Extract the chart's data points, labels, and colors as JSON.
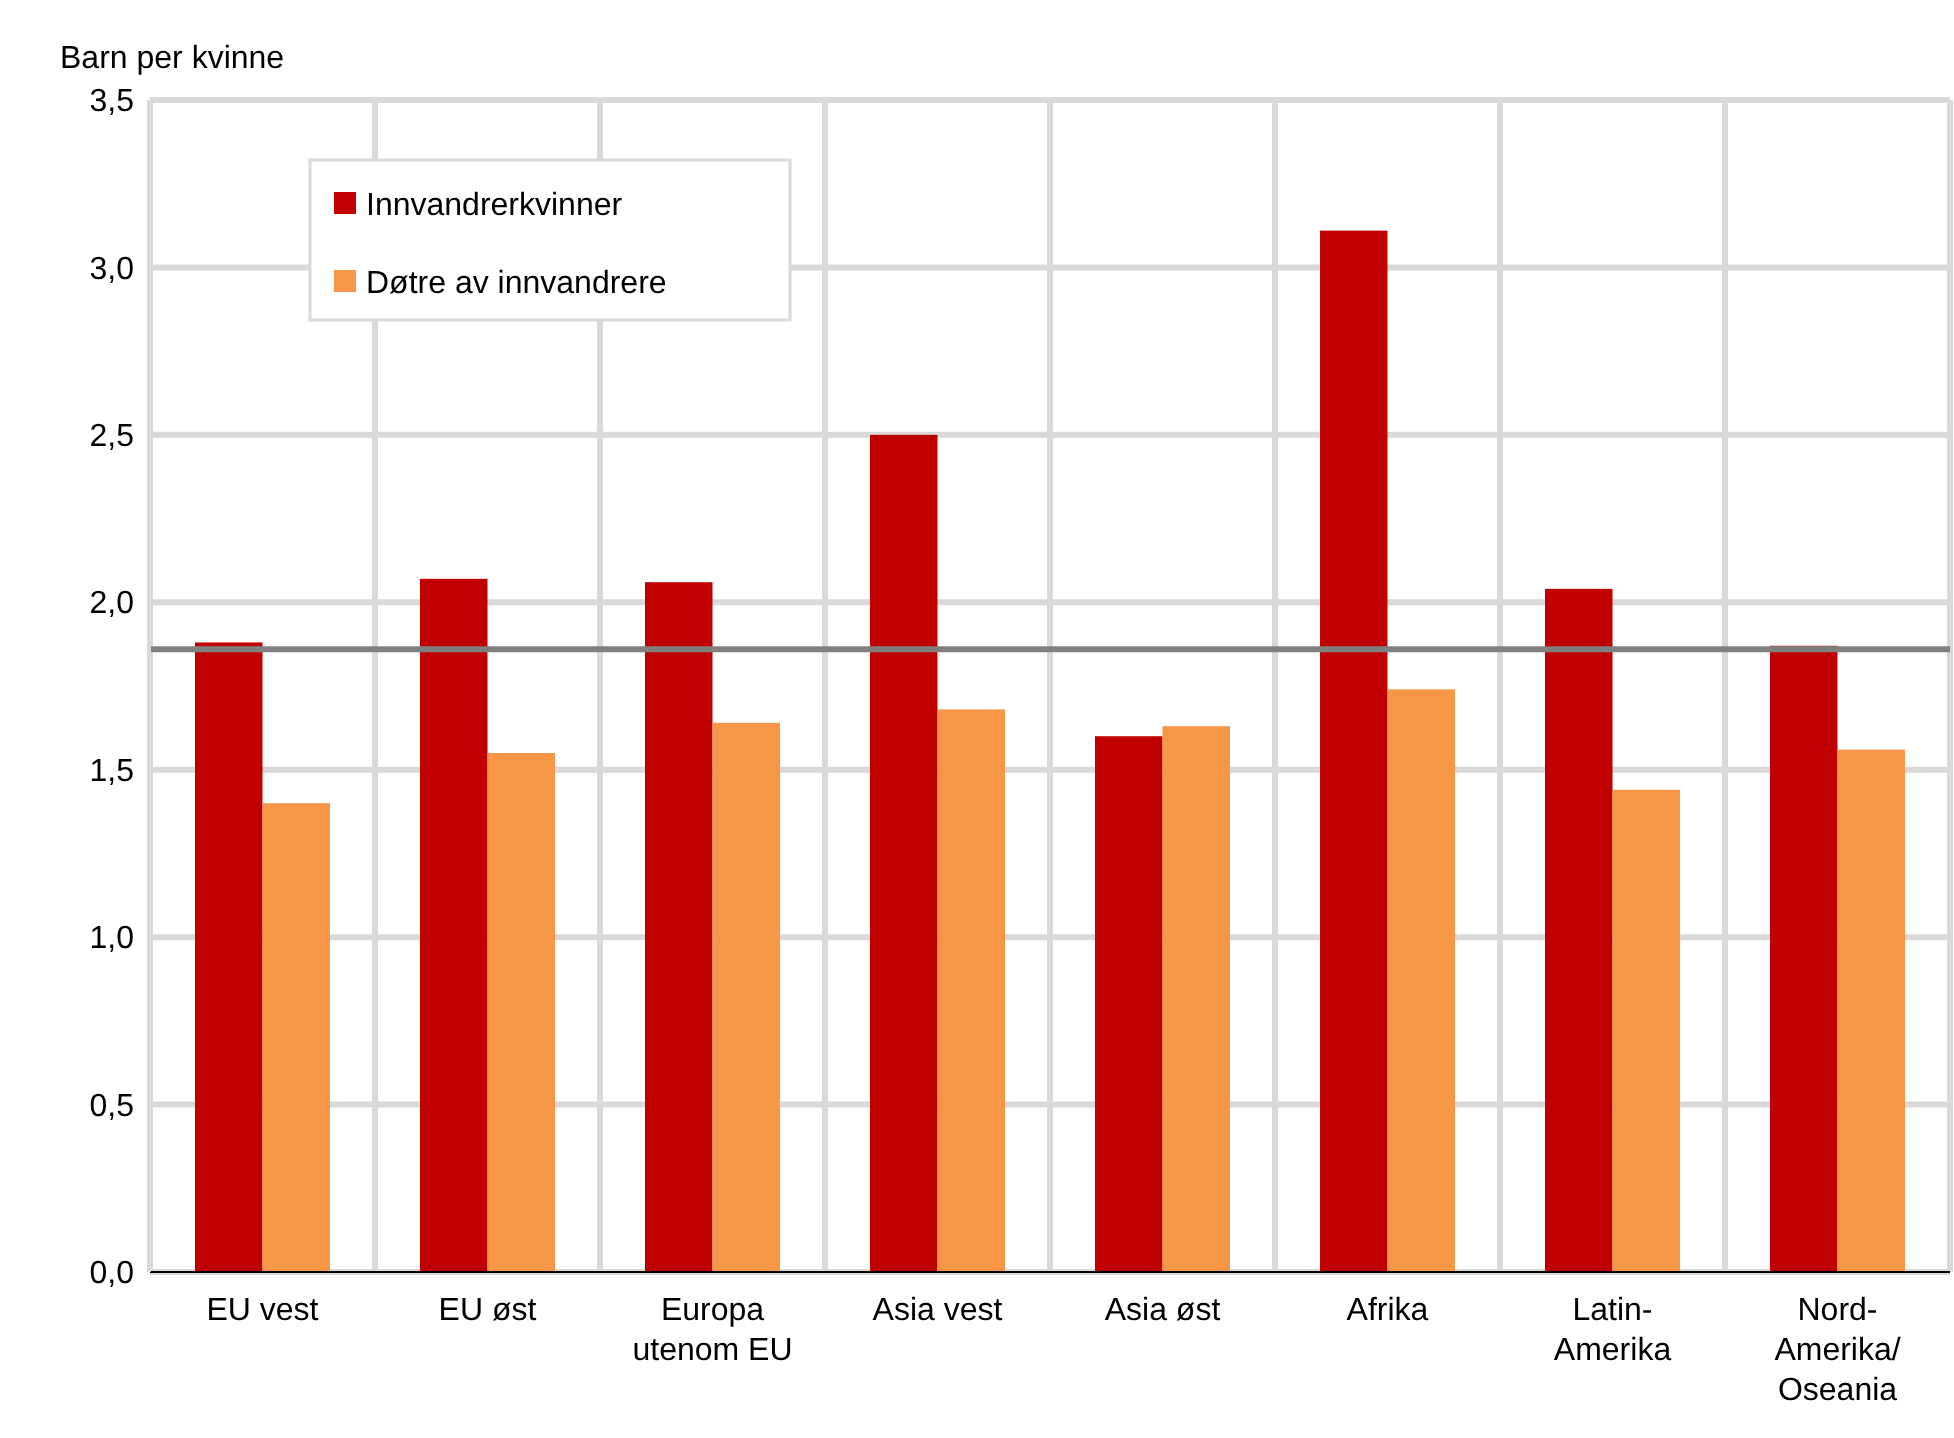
{
  "chart_data": {
    "type": "bar",
    "ylabel": "Barn per kvinne",
    "categories": [
      "EU vest",
      "EU øst",
      "Europa utenom EU",
      "Asia vest",
      "Asia øst",
      "Afrika",
      "Latin-Amerika",
      "Nord-Amerika/ Oseania"
    ],
    "series": [
      {
        "name": "Innvandrerkvinner",
        "color": "#c00000",
        "values": [
          1.88,
          2.07,
          2.06,
          2.5,
          1.6,
          3.11,
          2.04,
          1.87
        ]
      },
      {
        "name": "Døtre av innvandrere",
        "color": "#f79646",
        "values": [
          1.4,
          1.55,
          1.64,
          1.68,
          1.63,
          1.74,
          1.44,
          1.56
        ]
      }
    ],
    "ylim": [
      0,
      3.5
    ],
    "yticks": [
      {
        "value": 0,
        "label": "0,0"
      },
      {
        "value": 0.5,
        "label": "0,5"
      },
      {
        "value": 1,
        "label": "1,0"
      },
      {
        "value": 1.5,
        "label": "1,5"
      },
      {
        "value": 2,
        "label": "2,0"
      },
      {
        "value": 2.5,
        "label": "2,5"
      },
      {
        "value": 3,
        "label": "3,0"
      },
      {
        "value": 3.5,
        "label": "3,5"
      }
    ],
    "ref_lines": [
      {
        "axis": "y",
        "value": 1.86,
        "color": "#808080"
      }
    ],
    "grid": true,
    "legend": "top left"
  }
}
